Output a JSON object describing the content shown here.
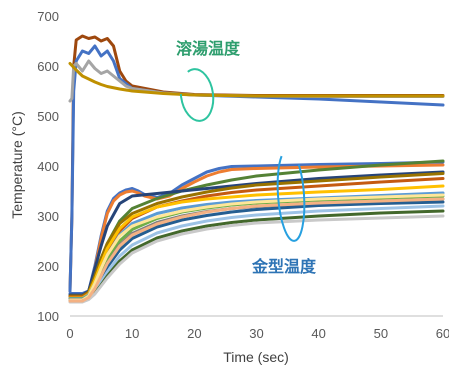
{
  "chart_data": {
    "type": "line",
    "title": "",
    "xlabel": "Time (sec)",
    "ylabel": "Temperature (°C)",
    "xlim": [
      0,
      60
    ],
    "ylim": [
      100,
      700
    ],
    "xticks": [
      "0",
      "10",
      "20",
      "30",
      "40",
      "50",
      "60"
    ],
    "yticks": [
      "100",
      "200",
      "300",
      "400",
      "500",
      "600",
      "700"
    ],
    "grid": false,
    "legend": "none",
    "annotations": [
      {
        "text": "溶湯温度",
        "color": "#2e9e6e"
      },
      {
        "text": "金型温度",
        "color": "#2e74b5"
      }
    ],
    "series": [
      {
        "color": "#9e480e",
        "x": [
          0,
          0.3,
          0.6,
          1,
          2,
          3,
          4,
          5,
          6,
          7,
          8,
          9,
          10,
          15,
          20,
          30,
          40,
          50,
          60
        ],
        "y": [
          150,
          300,
          600,
          652,
          660,
          655,
          658,
          650,
          655,
          640,
          590,
          570,
          560,
          548,
          543,
          541,
          541,
          541,
          541
        ]
      },
      {
        "color": "#4472c4",
        "x": [
          0,
          0.3,
          0.6,
          1,
          2,
          3,
          4,
          5,
          6,
          7,
          8,
          9,
          10,
          15,
          20,
          30,
          40,
          50,
          60
        ],
        "y": [
          150,
          300,
          550,
          610,
          630,
          625,
          640,
          620,
          630,
          610,
          575,
          565,
          555,
          546,
          542,
          538,
          534,
          528,
          522
        ]
      },
      {
        "color": "#a5a5a5",
        "x": [
          0,
          0.3,
          0.6,
          1,
          2,
          3,
          4,
          5,
          6,
          7,
          8,
          9,
          10,
          15,
          20,
          30,
          40,
          50,
          60
        ],
        "y": [
          530,
          535,
          600,
          605,
          590,
          610,
          595,
          585,
          590,
          580,
          570,
          560,
          555,
          546,
          542,
          540,
          539,
          539,
          539
        ]
      },
      {
        "color": "#bf9000",
        "x": [
          0,
          1,
          2,
          3,
          4,
          5,
          6,
          8,
          10,
          15,
          20,
          25,
          30,
          40,
          50,
          60
        ],
        "y": [
          605,
          592,
          580,
          574,
          568,
          563,
          559,
          554,
          550,
          545,
          542,
          541,
          540,
          540,
          540,
          540
        ]
      },
      {
        "color": "#4472c4",
        "x": [
          0,
          1,
          2,
          3,
          4,
          5,
          6,
          7,
          8,
          9,
          10,
          11,
          12,
          14,
          16,
          18,
          20,
          22,
          24,
          26,
          30,
          40,
          50,
          60
        ],
        "y": [
          145,
          145,
          145,
          150,
          200,
          260,
          310,
          335,
          346,
          352,
          355,
          350,
          343,
          337,
          345,
          362,
          375,
          388,
          395,
          399,
          400,
          403,
          405,
          408
        ]
      },
      {
        "color": "#ed7d31",
        "x": [
          0,
          1,
          2,
          3,
          4,
          5,
          6,
          7,
          8,
          9,
          10,
          11,
          12,
          14,
          16,
          18,
          20,
          22,
          24,
          26,
          30,
          40,
          50,
          60
        ],
        "y": [
          140,
          140,
          140,
          146,
          195,
          255,
          305,
          330,
          342,
          348,
          350,
          346,
          340,
          334,
          340,
          355,
          368,
          380,
          388,
          393,
          395,
          398,
          400,
          402
        ]
      },
      {
        "color": "#548235",
        "x": [
          0,
          2,
          3,
          4,
          5,
          6,
          8,
          10,
          14,
          18,
          22,
          26,
          30,
          40,
          50,
          60
        ],
        "y": [
          140,
          140,
          150,
          185,
          215,
          245,
          290,
          315,
          335,
          350,
          362,
          372,
          380,
          392,
          402,
          410
        ]
      },
      {
        "color": "#264478",
        "x": [
          0,
          2,
          3,
          4,
          5,
          6,
          8,
          10,
          14,
          18,
          22,
          26,
          30,
          40,
          50,
          60
        ],
        "y": [
          142,
          142,
          150,
          195,
          240,
          280,
          325,
          340,
          345,
          350,
          355,
          360,
          365,
          375,
          382,
          388
        ]
      },
      {
        "color": "#997300",
        "x": [
          0,
          2,
          3,
          4,
          5,
          6,
          8,
          10,
          14,
          18,
          22,
          26,
          30,
          40,
          50,
          60
        ],
        "y": [
          140,
          140,
          148,
          180,
          215,
          245,
          285,
          305,
          325,
          338,
          348,
          356,
          362,
          370,
          378,
          385
        ]
      },
      {
        "color": "#c55a11",
        "x": [
          0,
          2,
          3,
          4,
          5,
          6,
          8,
          10,
          14,
          18,
          22,
          26,
          30,
          40,
          50,
          60
        ],
        "y": [
          138,
          138,
          145,
          170,
          200,
          230,
          270,
          295,
          318,
          330,
          340,
          347,
          352,
          360,
          368,
          375
        ]
      },
      {
        "color": "#ffc000",
        "x": [
          0,
          2,
          3,
          4,
          5,
          6,
          8,
          10,
          14,
          18,
          22,
          26,
          30,
          40,
          50,
          60
        ],
        "y": [
          136,
          136,
          144,
          172,
          205,
          235,
          275,
          298,
          318,
          328,
          334,
          338,
          342,
          348,
          353,
          360
        ]
      },
      {
        "color": "#5b9bd5",
        "x": [
          0,
          2,
          3,
          4,
          5,
          6,
          8,
          10,
          14,
          18,
          22,
          26,
          30,
          40,
          50,
          60
        ],
        "y": [
          135,
          135,
          142,
          165,
          195,
          222,
          262,
          285,
          305,
          316,
          323,
          328,
          331,
          336,
          341,
          346
        ]
      },
      {
        "color": "#70ad47",
        "x": [
          0,
          2,
          3,
          4,
          5,
          6,
          8,
          10,
          14,
          18,
          22,
          26,
          30,
          40,
          50,
          60
        ],
        "y": [
          134,
          134,
          140,
          160,
          185,
          212,
          250,
          273,
          295,
          308,
          316,
          322,
          326,
          332,
          336,
          340
        ]
      },
      {
        "color": "#7f7f7f",
        "x": [
          0,
          2,
          3,
          4,
          5,
          6,
          8,
          10,
          14,
          18,
          22,
          26,
          30,
          40,
          50,
          60
        ],
        "y": [
          133,
          133,
          139,
          158,
          180,
          205,
          242,
          265,
          287,
          300,
          309,
          315,
          319,
          326,
          330,
          334
        ]
      },
      {
        "color": "#255e91",
        "x": [
          0,
          2,
          3,
          4,
          5,
          6,
          8,
          10,
          14,
          18,
          22,
          26,
          30,
          40,
          50,
          60
        ],
        "y": [
          132,
          132,
          138,
          155,
          176,
          198,
          232,
          255,
          278,
          292,
          301,
          308,
          313,
          321,
          325,
          328
        ]
      },
      {
        "color": "#ffe699",
        "x": [
          0,
          2,
          3,
          4,
          5,
          6,
          8,
          10,
          14,
          18,
          22,
          26,
          30,
          40,
          50,
          60
        ],
        "y": [
          132,
          132,
          140,
          165,
          195,
          222,
          260,
          280,
          298,
          310,
          318,
          324,
          328,
          334,
          338,
          342
        ]
      },
      {
        "color": "#9dc3e6",
        "x": [
          0,
          2,
          3,
          4,
          5,
          6,
          8,
          10,
          14,
          18,
          22,
          26,
          30,
          40,
          50,
          60
        ],
        "y": [
          130,
          130,
          136,
          150,
          168,
          188,
          220,
          242,
          266,
          280,
          290,
          297,
          302,
          310,
          315,
          320
        ]
      },
      {
        "color": "#43682b",
        "x": [
          0,
          2,
          3,
          4,
          5,
          6,
          8,
          10,
          14,
          18,
          22,
          26,
          30,
          40,
          50,
          60
        ],
        "y": [
          130,
          130,
          135,
          146,
          162,
          180,
          210,
          232,
          256,
          270,
          280,
          287,
          292,
          300,
          306,
          310
        ]
      },
      {
        "color": "#c9c9c9",
        "x": [
          0,
          2,
          3,
          4,
          5,
          6,
          8,
          10,
          14,
          18,
          22,
          26,
          30,
          40,
          50,
          60
        ],
        "y": [
          128,
          128,
          133,
          144,
          160,
          176,
          204,
          226,
          250,
          264,
          274,
          281,
          286,
          292,
          296,
          300
        ]
      },
      {
        "color": "#f4b183",
        "x": [
          0,
          2,
          3,
          4,
          5,
          6,
          8,
          10,
          14,
          18,
          22,
          26,
          30,
          40,
          50,
          60
        ],
        "y": [
          130,
          130,
          137,
          155,
          180,
          205,
          240,
          262,
          284,
          298,
          308,
          315,
          320,
          326,
          330,
          334
        ]
      }
    ]
  }
}
